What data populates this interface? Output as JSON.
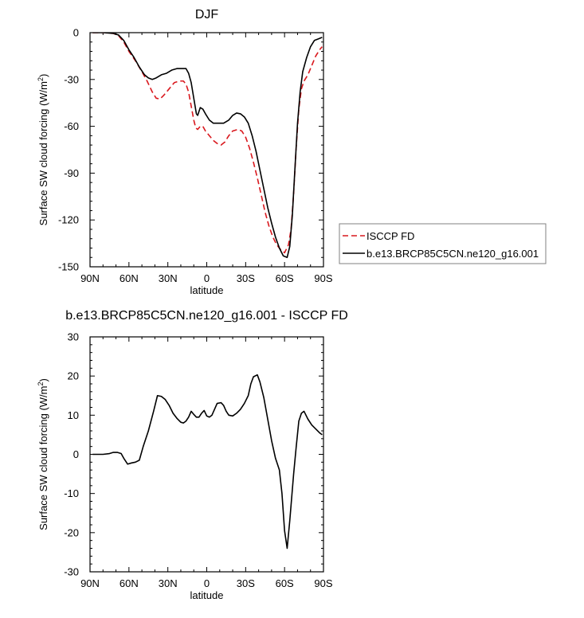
{
  "colors": {
    "reference": "#d9181e",
    "model": "#000000",
    "axis": "#000000"
  },
  "chart_data": [
    {
      "type": "line",
      "title": "DJF",
      "xlabel": "latitude",
      "ylabel": "Surface SW cloud forcing (W/m",
      "ylabel_sup": "2",
      "ylabel_end": ")",
      "xlim": [
        90,
        -90
      ],
      "ylim": [
        -150,
        0
      ],
      "x_ticks": [
        90,
        60,
        30,
        0,
        -30,
        -60,
        -90
      ],
      "x_tick_labels": [
        "90N",
        "60N",
        "30N",
        "0",
        "30S",
        "60S",
        "90S"
      ],
      "y_ticks": [
        0,
        -30,
        -60,
        -90,
        -120,
        -150
      ],
      "y_tick_labels": [
        "0",
        "-30",
        "-60",
        "-90",
        "-120",
        "-150"
      ],
      "legend_position": "right",
      "series": [
        {
          "name": "ISCCP FD",
          "style": "dashed",
          "color": "#d9181e",
          "points": [
            [
              88,
              0
            ],
            [
              80,
              0
            ],
            [
              72,
              -0.5
            ],
            [
              68,
              -2
            ],
            [
              64,
              -6
            ],
            [
              60,
              -12
            ],
            [
              55,
              -18
            ],
            [
              50,
              -25
            ],
            [
              46,
              -31
            ],
            [
              42,
              -38
            ],
            [
              39,
              -42
            ],
            [
              36,
              -42.5
            ],
            [
              33,
              -40
            ],
            [
              29,
              -36
            ],
            [
              25,
              -32
            ],
            [
              21,
              -31
            ],
            [
              18,
              -31
            ],
            [
              16,
              -33
            ],
            [
              14,
              -38
            ],
            [
              12,
              -47
            ],
            [
              10,
              -56
            ],
            [
              8.5,
              -61
            ],
            [
              7,
              -62
            ],
            [
              5,
              -60
            ],
            [
              3,
              -60
            ],
            [
              1,
              -63
            ],
            [
              -2,
              -66
            ],
            [
              -5,
              -69
            ],
            [
              -8,
              -71
            ],
            [
              -11,
              -72
            ],
            [
              -14,
              -70
            ],
            [
              -17,
              -66
            ],
            [
              -20,
              -63
            ],
            [
              -24,
              -62
            ],
            [
              -27,
              -63
            ],
            [
              -30,
              -67
            ],
            [
              -33,
              -74
            ],
            [
              -36,
              -83
            ],
            [
              -39,
              -93
            ],
            [
              -42,
              -104
            ],
            [
              -45,
              -115
            ],
            [
              -48,
              -124
            ],
            [
              -51,
              -131
            ],
            [
              -54,
              -136
            ],
            [
              -57,
              -139
            ],
            [
              -60,
              -141
            ],
            [
              -63,
              -136
            ],
            [
              -65,
              -126
            ],
            [
              -67,
              -103
            ],
            [
              -69,
              -73
            ],
            [
              -71,
              -49
            ],
            [
              -73,
              -36
            ],
            [
              -75,
              -31
            ],
            [
              -78,
              -27
            ],
            [
              -81,
              -21
            ],
            [
              -84,
              -15
            ],
            [
              -87,
              -11
            ],
            [
              -89,
              -9
            ]
          ]
        },
        {
          "name": "b.e13.BRCP85C5CN.ne120_g16.001",
          "style": "solid",
          "color": "#000000",
          "points": [
            [
              88,
              0
            ],
            [
              80,
              0
            ],
            [
              72,
              -0.5
            ],
            [
              68,
              -1.5
            ],
            [
              64,
              -5
            ],
            [
              60,
              -11
            ],
            [
              56,
              -16
            ],
            [
              52,
              -22
            ],
            [
              48,
              -27
            ],
            [
              45,
              -29
            ],
            [
              42,
              -30
            ],
            [
              39,
              -29
            ],
            [
              35,
              -27
            ],
            [
              31,
              -26
            ],
            [
              27,
              -24
            ],
            [
              23,
              -23
            ],
            [
              19,
              -23
            ],
            [
              16,
              -23
            ],
            [
              14,
              -26
            ],
            [
              12,
              -32
            ],
            [
              10,
              -42
            ],
            [
              8,
              -52
            ],
            [
              7,
              -53
            ],
            [
              5,
              -48
            ],
            [
              3,
              -49
            ],
            [
              1,
              -52
            ],
            [
              -2,
              -56
            ],
            [
              -5,
              -58
            ],
            [
              -9,
              -58
            ],
            [
              -13,
              -58
            ],
            [
              -17,
              -56
            ],
            [
              -20,
              -53
            ],
            [
              -23,
              -51.5
            ],
            [
              -26,
              -52
            ],
            [
              -29,
              -54
            ],
            [
              -32,
              -58
            ],
            [
              -35,
              -66
            ],
            [
              -38,
              -76
            ],
            [
              -41,
              -88
            ],
            [
              -44,
              -100
            ],
            [
              -47,
              -112
            ],
            [
              -50,
              -122
            ],
            [
              -53,
              -131
            ],
            [
              -56,
              -138
            ],
            [
              -59,
              -143
            ],
            [
              -62,
              -144
            ],
            [
              -64,
              -137
            ],
            [
              -66,
              -117
            ],
            [
              -68,
              -87
            ],
            [
              -70,
              -58
            ],
            [
              -72,
              -38
            ],
            [
              -74,
              -25
            ],
            [
              -77,
              -16
            ],
            [
              -80,
              -9
            ],
            [
              -83,
              -5
            ],
            [
              -86,
              -4
            ],
            [
              -89,
              -3
            ]
          ]
        }
      ]
    },
    {
      "type": "line",
      "title": "b.e13.BRCP85C5CN.ne120_g16.001 - ISCCP FD",
      "xlabel": "latitude",
      "ylabel": "Surface SW cloud forcing (W/m",
      "ylabel_sup": "2",
      "ylabel_end": ")",
      "xlim": [
        90,
        -90
      ],
      "ylim": [
        -30,
        30
      ],
      "x_ticks": [
        90,
        60,
        30,
        0,
        -30,
        -60,
        -90
      ],
      "x_tick_labels": [
        "90N",
        "60N",
        "30N",
        "0",
        "30S",
        "60S",
        "90S"
      ],
      "y_ticks": [
        30,
        20,
        10,
        0,
        -10,
        -20,
        -30
      ],
      "y_tick_labels": [
        "30",
        "20",
        "10",
        "0",
        "-10",
        "-20",
        "-30"
      ],
      "series": [
        {
          "style": "solid",
          "color": "#000000",
          "points": [
            [
              88,
              0
            ],
            [
              80,
              0
            ],
            [
              75,
              0.2
            ],
            [
              72,
              0.5
            ],
            [
              69,
              0.5
            ],
            [
              66,
              0.2
            ],
            [
              64,
              -1
            ],
            [
              61,
              -2.5
            ],
            [
              58,
              -2.2
            ],
            [
              55,
              -2
            ],
            [
              52,
              -1.5
            ],
            [
              49,
              2
            ],
            [
              45,
              6
            ],
            [
              41,
              11
            ],
            [
              38,
              15
            ],
            [
              35,
              14.8
            ],
            [
              32,
              14
            ],
            [
              29,
              12.5
            ],
            [
              26,
              10.5
            ],
            [
              23,
              9.2
            ],
            [
              20,
              8.2
            ],
            [
              18,
              8
            ],
            [
              16,
              8.5
            ],
            [
              14,
              9.5
            ],
            [
              12,
              11
            ],
            [
              10,
              10.2
            ],
            [
              8,
              9.5
            ],
            [
              6,
              9.5
            ],
            [
              4,
              10.5
            ],
            [
              2,
              11.2
            ],
            [
              0,
              9.8
            ],
            [
              -2,
              9.5
            ],
            [
              -4,
              10
            ],
            [
              -6,
              11.5
            ],
            [
              -8,
              13
            ],
            [
              -11,
              13.2
            ],
            [
              -13,
              12.5
            ],
            [
              -15,
              11
            ],
            [
              -17,
              10
            ],
            [
              -20,
              9.8
            ],
            [
              -23,
              10.5
            ],
            [
              -26,
              11.5
            ],
            [
              -29,
              13
            ],
            [
              -32,
              15
            ],
            [
              -34,
              18
            ],
            [
              -36,
              19.8
            ],
            [
              -39,
              20.3
            ],
            [
              -41,
              18.5
            ],
            [
              -44,
              14.5
            ],
            [
              -47,
              9
            ],
            [
              -50,
              3.5
            ],
            [
              -53,
              -1
            ],
            [
              -56,
              -4
            ],
            [
              -58,
              -10
            ],
            [
              -60,
              -19.5
            ],
            [
              -62,
              -24
            ],
            [
              -64,
              -17
            ],
            [
              -67,
              -5
            ],
            [
              -69,
              2
            ],
            [
              -71,
              8.5
            ],
            [
              -73,
              10.5
            ],
            [
              -75,
              11
            ],
            [
              -78,
              9
            ],
            [
              -81,
              7.5
            ],
            [
              -84,
              6.5
            ],
            [
              -87,
              5.5
            ],
            [
              -89,
              5
            ]
          ]
        }
      ]
    }
  ]
}
